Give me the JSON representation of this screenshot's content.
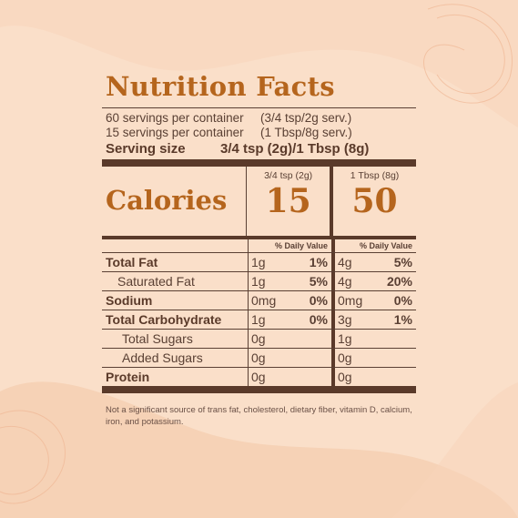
{
  "colors": {
    "background": "#fadfc9",
    "accent": "#b5651d",
    "text": "#5a4034",
    "rule": "#5a3a2a"
  },
  "label": {
    "title": "Nutrition Facts",
    "servings": [
      {
        "left": "60 servings per container",
        "right": "(3/4 tsp/2g serv.)"
      },
      {
        "left": "15 servings per container",
        "right": "(1 Tbsp/8g serv.)"
      }
    ],
    "serving_size": {
      "label": "Serving size",
      "value": "3/4 tsp (2g)/1 Tbsp (8g)"
    },
    "calories": {
      "label": "Calories",
      "col1_header": "3/4 tsp (2g)",
      "col1_value": "15",
      "col2_header": "1 Tbsp (8g)",
      "col2_value": "50"
    },
    "dv_header": "% Daily Value",
    "nutrients": [
      {
        "name": "Total Fat",
        "amt1": "1g",
        "pct1": "1%",
        "amt2": "4g",
        "pct2": "5%"
      },
      {
        "name": "Saturated Fat",
        "amt1": "1g",
        "pct1": "5%",
        "amt2": "4g",
        "pct2": "20%"
      },
      {
        "name": "Sodium",
        "amt1": "0mg",
        "pct1": "0%",
        "amt2": "0mg",
        "pct2": "0%"
      },
      {
        "name": "Total Carbohydrate",
        "amt1": "1g",
        "pct1": "0%",
        "amt2": "3g",
        "pct2": "1%"
      },
      {
        "name": "Total Sugars",
        "amt1": "0g",
        "pct1": "",
        "amt2": "1g",
        "pct2": ""
      },
      {
        "name": "Added Sugars",
        "amt1": "0g",
        "pct1": "",
        "amt2": "0g",
        "pct2": ""
      },
      {
        "name": "Protein",
        "amt1": "0g",
        "pct1": "",
        "amt2": "0g",
        "pct2": ""
      }
    ],
    "footnote": "Not a significant source of trans fat, cholesterol, dietary fiber, vitamin D, calcium, iron, and potassium."
  }
}
